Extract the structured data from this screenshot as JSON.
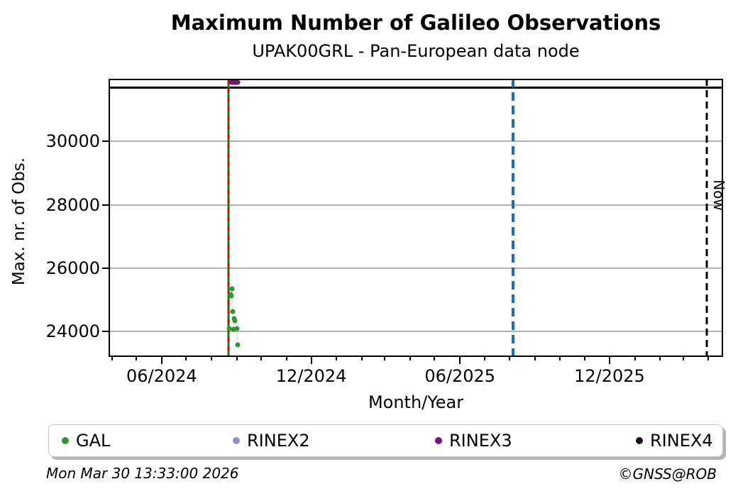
{
  "header": {
    "title": "Maximum Number of Galileo Observations",
    "subtitle": "UPAK00GRL - Pan-European data node"
  },
  "footer": {
    "timestamp": "Mon Mar 30 13:33:00 2026",
    "copyright": "©GNSS@ROB"
  },
  "chart_data": {
    "type": "scatter",
    "title": "Maximum Number of Galileo Observations",
    "subtitle": "UPAK00GRL - Pan-European data node",
    "xlabel": "Month/Year",
    "ylabel": "Max. nr. of Obs.",
    "x_domain": [
      "2024-03-28",
      "2026-04-19"
    ],
    "ylim": [
      23200,
      31980
    ],
    "grid": "horizontal-major-only",
    "legend_position": "bottom",
    "y_ticks": [
      {
        "value": 24000,
        "label": "24000"
      },
      {
        "value": 26000,
        "label": "26000"
      },
      {
        "value": 28000,
        "label": "28000"
      },
      {
        "value": 30000,
        "label": "30000"
      }
    ],
    "x_major_ticks": [
      {
        "date": "2024-06-01",
        "label": "06/2024"
      },
      {
        "date": "2024-12-01",
        "label": "12/2024"
      },
      {
        "date": "2025-06-01",
        "label": "06/2025"
      },
      {
        "date": "2025-12-01",
        "label": "12/2025"
      }
    ],
    "x_minor_tick_dates": [
      "2024-04-01",
      "2024-05-01",
      "2024-07-01",
      "2024-08-01",
      "2024-09-01",
      "2024-10-01",
      "2024-11-01",
      "2025-01-01",
      "2025-02-01",
      "2025-03-01",
      "2025-04-01",
      "2025-05-01",
      "2025-07-01",
      "2025-08-01",
      "2025-09-01",
      "2025-10-01",
      "2025-11-01",
      "2026-01-01",
      "2026-02-01",
      "2026-03-01",
      "2026-04-01"
    ],
    "hline": {
      "value": 31690,
      "color": "#000000"
    },
    "vlines": [
      {
        "kind": "event-green",
        "date": "2024-08-22",
        "color": "#0f7d0f",
        "dash": null
      },
      {
        "kind": "event-red",
        "date": "2024-08-22",
        "color": "#e00000",
        "dash": [
          6,
          7
        ]
      },
      {
        "kind": "blue",
        "date": "2025-08-05",
        "color": "#1b6fba",
        "dash": [
          12,
          7
        ]
      },
      {
        "kind": "now",
        "date": "2026-03-30",
        "color": "#000000",
        "dash": [
          10,
          6
        ],
        "label": "Now"
      }
    ],
    "now_label": "Now",
    "series": [
      {
        "name": "GAL",
        "color": "#2e962e",
        "connect": true,
        "points": [
          [
            "2024-08-23",
            24090
          ],
          [
            "2024-08-24",
            25180
          ],
          [
            "2024-08-25",
            25120
          ],
          [
            "2024-08-26",
            25350
          ],
          [
            "2024-08-27",
            24640
          ],
          [
            "2024-08-28",
            24080
          ],
          [
            "2024-08-29",
            24400
          ],
          [
            "2024-08-30",
            24340
          ],
          [
            "2024-09-01",
            24090
          ],
          [
            "2024-09-02",
            23590
          ]
        ]
      },
      {
        "name": "RINEX2",
        "color": "#8f8fd0",
        "connect": false,
        "points": []
      },
      {
        "name": "RINEX3",
        "color": "#7a1277",
        "connect": false,
        "points": [
          [
            "2024-08-25",
            31860
          ],
          [
            "2024-08-26",
            31860
          ],
          [
            "2024-08-27",
            31860
          ],
          [
            "2024-08-28",
            31860
          ],
          [
            "2024-08-29",
            31860
          ],
          [
            "2024-08-30",
            31860
          ],
          [
            "2024-08-31",
            31860
          ],
          [
            "2024-09-01",
            31860
          ],
          [
            "2024-09-02",
            31860
          ]
        ]
      },
      {
        "name": "RINEX4",
        "color": "#250a28",
        "connect": false,
        "points": []
      }
    ]
  }
}
